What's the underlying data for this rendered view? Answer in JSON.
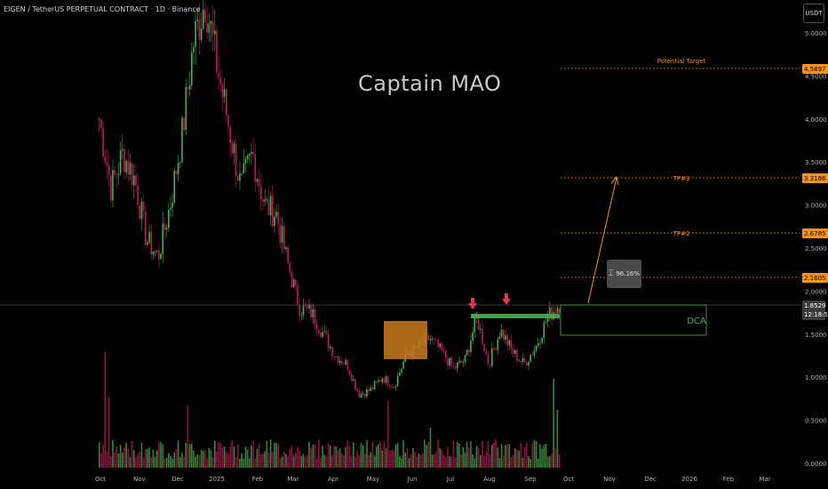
{
  "header": {
    "title": "EIGEN / TetherUS PERPETUAL CONTRACT · 1D · Binance",
    "currency_button": "USDT"
  },
  "watermark": "Captain MAO",
  "measure_label": "96.16%",
  "annotations": {
    "potential_target": "Potential Target",
    "tp3": "TP#3",
    "tp2": "TP#2",
    "dca": "DCA"
  },
  "price_tags": {
    "target": "4.5897",
    "tp3": "3.3166",
    "tp2": "2.6785",
    "tp1": "2.1605",
    "current_price": "1.8529",
    "countdown": "12:18:57"
  },
  "colors": {
    "up": "#26a69a",
    "up_green": "#4caf50",
    "down": "#c2185b",
    "orange": "#f7931a",
    "zone_orange": "#c97a1a",
    "arrow_red": "#e53950"
  },
  "chart_data": {
    "type": "candlestick",
    "symbol": "EIGEN / TetherUS PERPETUAL CONTRACT",
    "timeframe": "1D",
    "exchange": "Binance",
    "y_axis_ticks": [
      "5.0000",
      "4.5000",
      "4.0000",
      "3.5000",
      "3.0000",
      "2.5000",
      "2.0000",
      "1.5000",
      "1.0000",
      "0.5000",
      "0.0000"
    ],
    "ylim": [
      0,
      5.5
    ],
    "x_axis_ticks": [
      "Oct",
      "Nov",
      "Dec",
      "2025",
      "Feb",
      "Mar",
      "Apr",
      "May",
      "Jun",
      "Jul",
      "Aug",
      "Sep",
      "Oct",
      "Nov",
      "Dec",
      "2026",
      "Feb",
      "Mar"
    ],
    "price_path": [
      [
        "Oct",
        4.0
      ],
      [
        "Oct",
        3.2
      ],
      [
        "Oct",
        3.6
      ],
      [
        "Nov",
        3.3
      ],
      [
        "Nov",
        2.6
      ],
      [
        "Nov",
        2.4
      ],
      [
        "Nov",
        3.0
      ],
      [
        "Dec",
        3.8
      ],
      [
        "Dec",
        4.9
      ],
      [
        "Dec",
        5.4
      ],
      [
        "Dec",
        4.6
      ],
      [
        "2025",
        3.9
      ],
      [
        "2025",
        3.2
      ],
      [
        "2025",
        3.6
      ],
      [
        "2025",
        3.0
      ],
      [
        "Feb",
        2.9
      ],
      [
        "Feb",
        2.3
      ],
      [
        "Feb",
        1.8
      ],
      [
        "Mar",
        1.75
      ],
      [
        "Mar",
        1.5
      ],
      [
        "Mar",
        1.25
      ],
      [
        "Apr",
        1.15
      ],
      [
        "Apr",
        0.8
      ],
      [
        "Apr",
        0.85
      ],
      [
        "May",
        1.0
      ],
      [
        "May",
        0.9
      ],
      [
        "May",
        1.25
      ],
      [
        "Jun",
        1.35
      ],
      [
        "Jun",
        1.45
      ],
      [
        "Jun",
        1.3
      ],
      [
        "Jul",
        1.1
      ],
      [
        "Jul",
        1.2
      ],
      [
        "Jul",
        1.7
      ],
      [
        "Aug",
        1.15
      ],
      [
        "Aug",
        1.55
      ],
      [
        "Aug",
        1.3
      ],
      [
        "Sep",
        1.15
      ],
      [
        "Sep",
        1.35
      ],
      [
        "Sep",
        1.7
      ],
      [
        "Sep",
        1.85
      ]
    ],
    "levels": {
      "potential_target": 4.5897,
      "tp3": 3.3166,
      "tp2": 2.6785,
      "tp1": 2.1605,
      "current": 1.8529
    },
    "dca_zone": [
      1.48,
      1.82
    ],
    "orange_zone": [
      1.25,
      1.68
    ],
    "projection_pct": "96.16%",
    "grid": false,
    "volume": true
  }
}
